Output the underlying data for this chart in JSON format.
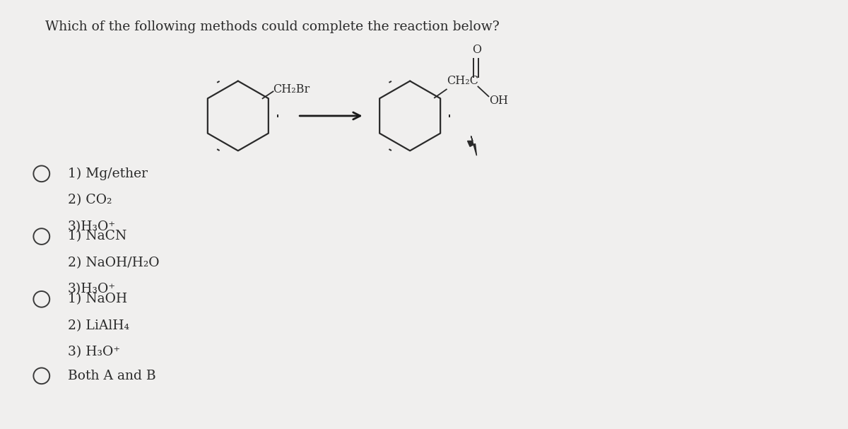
{
  "title": "Which of the following methods could complete the reaction below?",
  "background_color": "#f0efee",
  "text_color": "#2a2a2a",
  "options": [
    {
      "lines": [
        "1) Mg/ether",
        "2) CO₂",
        "3)H₃O⁺"
      ]
    },
    {
      "lines": [
        "1) NaCN",
        "2) NaOH/H₂O",
        "3)H₃O⁺"
      ]
    },
    {
      "lines": [
        "1) NaOH",
        "2) LiAlH₄",
        "3) H₃O⁺"
      ]
    },
    {
      "lines": [
        "Both A and B"
      ]
    }
  ],
  "reactant_label": "CH₂Br",
  "product_label_ch2c": "CH₂C",
  "product_label_oh": "OH",
  "product_label_o": "O",
  "font_size_main": 13.5,
  "font_size_options": 13.5
}
